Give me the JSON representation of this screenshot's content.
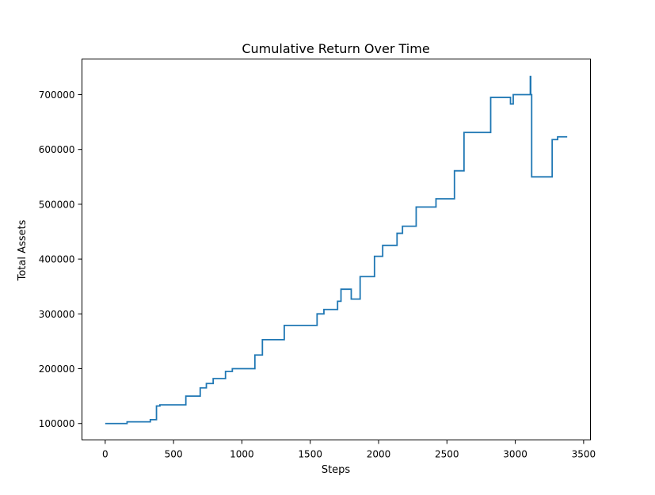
{
  "chart_data": {
    "type": "line",
    "title": "Cumulative Return Over Time",
    "xlabel": "Steps",
    "ylabel": "Total Assets",
    "xlim": [
      -170,
      3550
    ],
    "ylim": [
      70000,
      765000
    ],
    "xticks": [
      0,
      500,
      1000,
      1500,
      2000,
      2500,
      3000,
      3500
    ],
    "xtick_labels": [
      "0",
      "500",
      "1000",
      "1500",
      "2000",
      "2500",
      "3000",
      "3500"
    ],
    "yticks": [
      100000,
      200000,
      300000,
      400000,
      500000,
      600000,
      700000
    ],
    "ytick_labels": [
      "100000",
      "200000",
      "300000",
      "400000",
      "500000",
      "600000",
      "700000"
    ],
    "grid": false,
    "series": [
      {
        "color": "#1f77b4",
        "style": "step",
        "x": [
          0,
          160,
          330,
          375,
          400,
          590,
          695,
          740,
          790,
          880,
          930,
          1095,
          1150,
          1310,
          1550,
          1600,
          1700,
          1725,
          1800,
          1865,
          1970,
          2030,
          2135,
          2175,
          2275,
          2420,
          2555,
          2625,
          2820,
          2965,
          2985,
          3110,
          3113,
          3120,
          3270,
          3310,
          3380
        ],
        "y": [
          100000,
          103000,
          107000,
          132000,
          134000,
          150000,
          165000,
          173000,
          182000,
          195000,
          200000,
          225000,
          253000,
          279000,
          300000,
          308000,
          323000,
          345000,
          327000,
          368000,
          405000,
          425000,
          447000,
          460000,
          495000,
          510000,
          561000,
          631000,
          695000,
          683000,
          700000,
          733000,
          700000,
          550000,
          618000,
          623000,
          623000
        ]
      }
    ]
  }
}
